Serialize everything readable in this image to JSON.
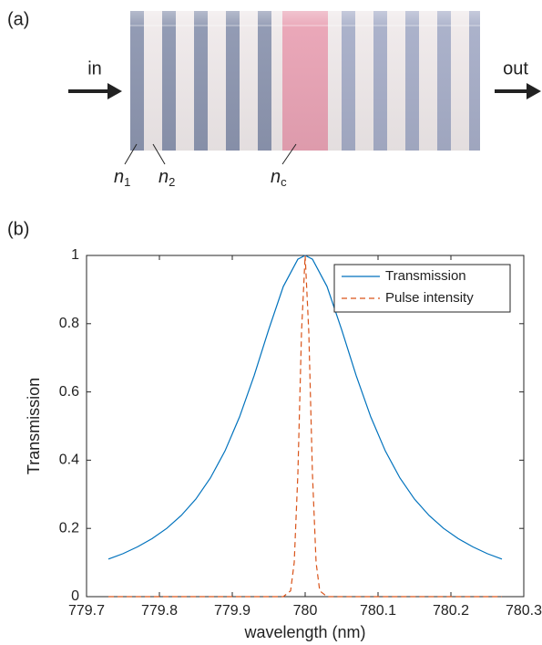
{
  "panel_a": {
    "label": "(a)",
    "input": "in",
    "output": "out",
    "layers": [
      {
        "symbol": "n",
        "sub": "1"
      },
      {
        "symbol": "n",
        "sub": "2"
      },
      {
        "symbol": "n",
        "sub": "c"
      }
    ]
  },
  "panel_b": {
    "label": "(b)"
  },
  "chart_data": {
    "type": "line",
    "xlabel": "wavelength (nm)",
    "ylabel": "Transmission",
    "xlim": [
      779.7,
      780.3
    ],
    "xticks": [
      779.7,
      779.8,
      779.9,
      780,
      780.1,
      780.2,
      780.3
    ],
    "ylim": [
      0,
      1
    ],
    "yticks": [
      0,
      0.2,
      0.4,
      0.6,
      0.8,
      1
    ],
    "legend": "upper right",
    "series": [
      {
        "name": "Transmission",
        "color": "#0072bd",
        "dash": false,
        "x": [
          779.73,
          779.75,
          779.77,
          779.79,
          779.81,
          779.83,
          779.85,
          779.87,
          779.89,
          779.91,
          779.93,
          779.95,
          779.97,
          779.99,
          780,
          780.01,
          780.03,
          780.05,
          780.07,
          780.09,
          780.11,
          780.13,
          780.15,
          780.17,
          780.19,
          780.21,
          780.23,
          780.25,
          780.27
        ],
        "values": [
          0.11,
          0.126,
          0.146,
          0.17,
          0.2,
          0.238,
          0.286,
          0.348,
          0.427,
          0.527,
          0.648,
          0.783,
          0.909,
          0.989,
          1,
          0.989,
          0.909,
          0.783,
          0.648,
          0.527,
          0.427,
          0.348,
          0.286,
          0.238,
          0.2,
          0.17,
          0.146,
          0.126,
          0.11
        ]
      },
      {
        "name": "Pulse intensity",
        "color": "#d95319",
        "dash": true,
        "x": [
          779.73,
          779.97,
          779.98,
          779.985,
          779.99,
          779.995,
          780,
          780.005,
          780.01,
          780.015,
          780.02,
          780.03,
          780.27
        ],
        "values": [
          0,
          0,
          0.017,
          0.1,
          0.36,
          0.775,
          1,
          0.775,
          0.36,
          0.1,
          0.017,
          0,
          0
        ]
      }
    ]
  }
}
